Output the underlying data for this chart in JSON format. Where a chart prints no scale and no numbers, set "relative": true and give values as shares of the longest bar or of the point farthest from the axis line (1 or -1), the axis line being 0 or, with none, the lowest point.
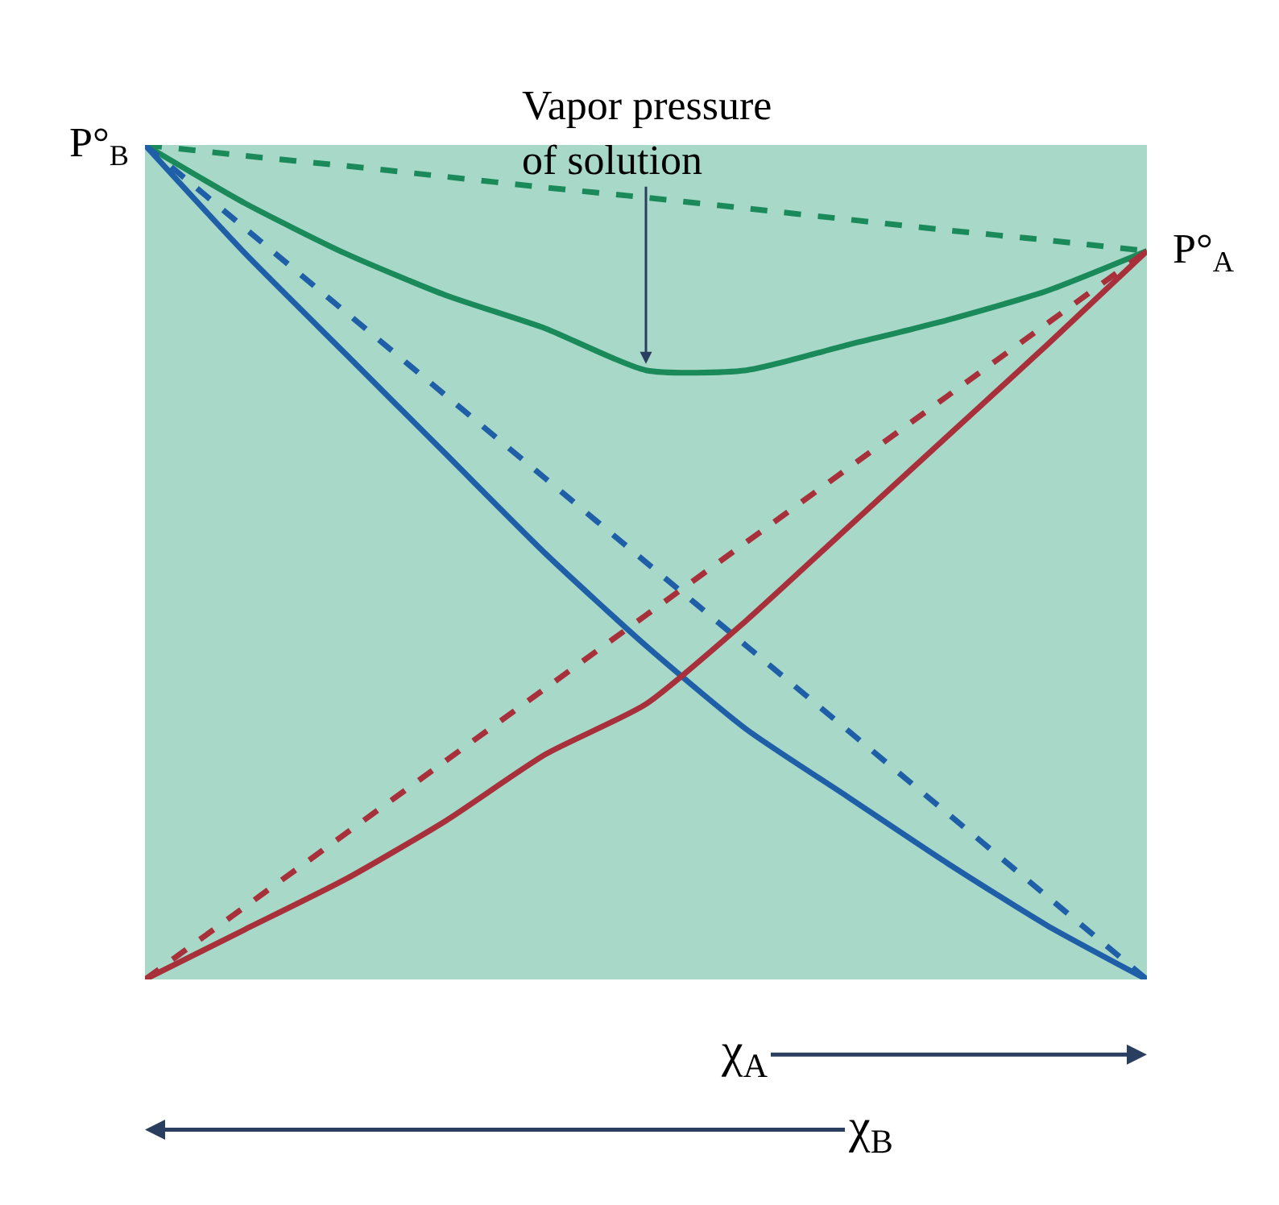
{
  "chart_data": {
    "type": "line",
    "relative": true,
    "grid": false,
    "legend": false,
    "categories": [
      null,
      null,
      null,
      null,
      null,
      null,
      null,
      null,
      null,
      null,
      null
    ],
    "series": [
      {
        "color": "#1a8a5a",
        "line_style": "dashed",
        "values": [
          1.0,
          0.987,
          0.975,
          0.962,
          0.949,
          0.937,
          0.924,
          0.911,
          0.898,
          0.886,
          0.873
        ]
      },
      {
        "color": "#1a8a5a",
        "line_style": "solid",
        "values": [
          1.0,
          0.93,
          0.87,
          0.82,
          0.78,
          0.73,
          0.73,
          0.76,
          0.79,
          0.825,
          0.873
        ]
      },
      {
        "color": "#1f5fa8",
        "line_style": "dashed",
        "values": [
          1.0,
          0.9,
          0.8,
          0.7,
          0.6,
          0.5,
          0.4,
          0.3,
          0.2,
          0.1,
          0.0
        ]
      },
      {
        "color": "#1f5fa8",
        "line_style": "solid",
        "values": [
          1.0,
          0.87,
          0.75,
          0.63,
          0.51,
          0.4,
          0.3,
          0.22,
          0.14,
          0.065,
          0.0
        ]
      },
      {
        "color": "#a8303a",
        "line_style": "dashed",
        "values": [
          0.0,
          0.0873,
          0.1746,
          0.2619,
          0.3492,
          0.4365,
          0.5238,
          0.6111,
          0.6984,
          0.7857,
          0.873
        ]
      },
      {
        "color": "#a8303a",
        "line_style": "solid",
        "values": [
          0.0,
          0.06,
          0.12,
          0.19,
          0.27,
          0.33,
          0.43,
          0.54,
          0.65,
          0.76,
          0.873
        ]
      }
    ],
    "annotations": [
      "P°$_{B}$",
      "P°$_{A}$",
      "Vapor pressure\nof solution",
      "χ$_{A}$",
      "χ$_{B}$"
    ]
  }
}
